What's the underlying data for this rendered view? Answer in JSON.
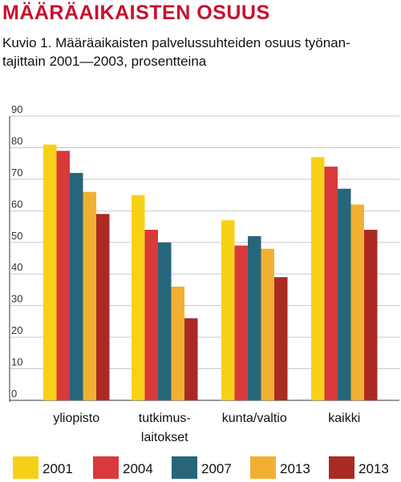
{
  "header": {
    "title": "MÄÄRÄAIKAISTEN OSUUS",
    "subtitle": "Kuvio 1. Määräaikaisten palvelussuhteiden osuus työnan-tajittain 2001—2003, prosentteina"
  },
  "colors": {
    "title": "#c8102e",
    "grid": "#c9c9c9",
    "axis": "#333333"
  },
  "chart_data": {
    "type": "bar",
    "categories": [
      [
        "yliopisto"
      ],
      [
        "tutkimus-",
        "laitokset"
      ],
      [
        "kunta/valtio"
      ],
      [
        "kaikki"
      ]
    ],
    "series": [
      {
        "name": "2001",
        "color": "#f7d117",
        "values": [
          81,
          65,
          57,
          77
        ]
      },
      {
        "name": "2004",
        "color": "#d9393b",
        "values": [
          79,
          54,
          49,
          74
        ]
      },
      {
        "name": "2007",
        "color": "#27667a",
        "values": [
          72,
          50,
          52,
          67
        ]
      },
      {
        "name": "2013",
        "color": "#f2b033",
        "values": [
          66,
          36,
          48,
          62
        ]
      },
      {
        "name": "2013",
        "color": "#ab2a24",
        "values": [
          59,
          26,
          39,
          54
        ]
      }
    ],
    "yticks": [
      0,
      10,
      20,
      30,
      40,
      50,
      60,
      70,
      80,
      90
    ],
    "ylim": [
      0,
      90
    ],
    "grid": true,
    "legend_position": "bottom"
  }
}
